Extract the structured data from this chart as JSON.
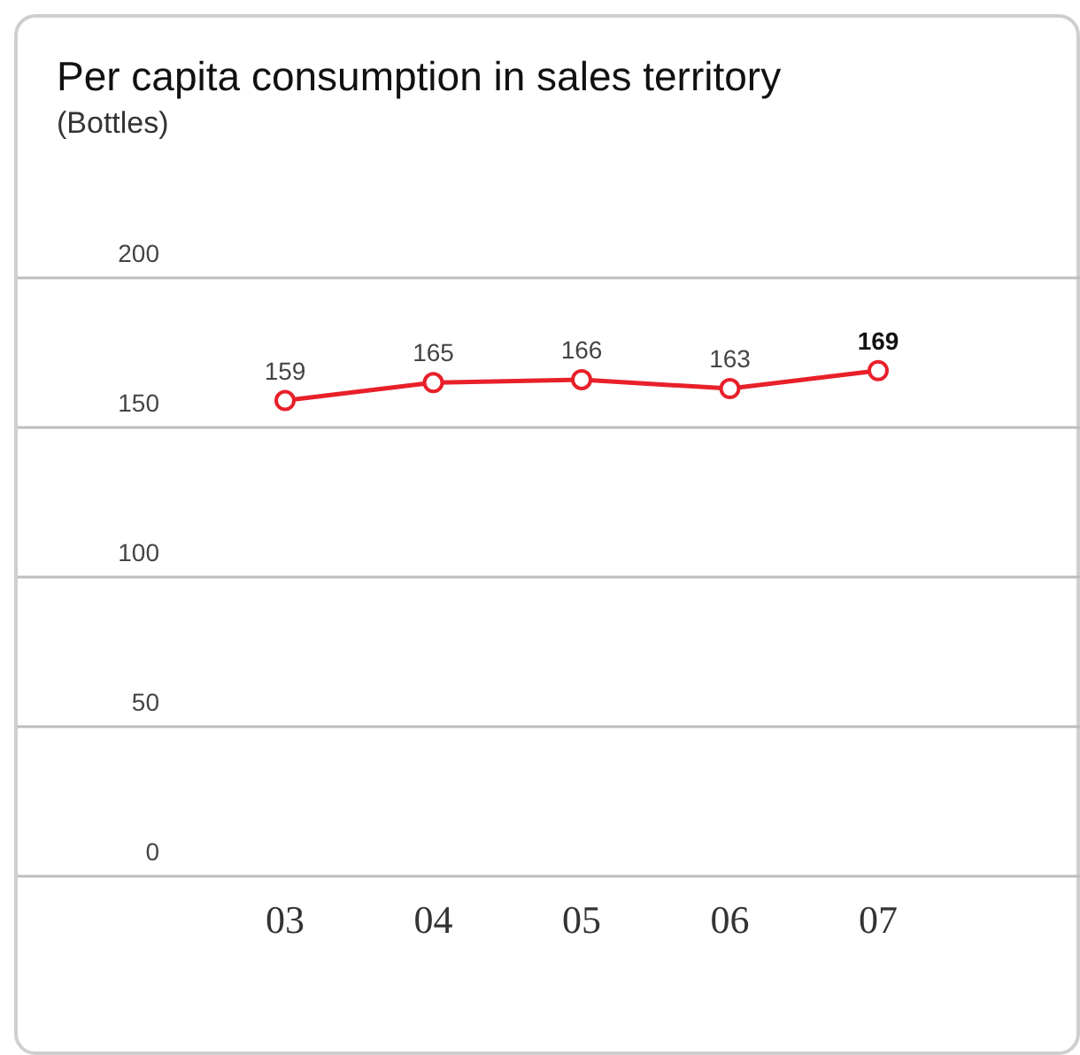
{
  "chart_data": {
    "type": "line",
    "title": "Per capita consumption in sales territory",
    "subtitle": "(Bottles)",
    "categories": [
      "03",
      "04",
      "05",
      "06",
      "07"
    ],
    "values": [
      159,
      165,
      166,
      163,
      169
    ],
    "color": "#e8202a",
    "ylim": [
      0,
      200
    ],
    "yticks": [
      0,
      50,
      100,
      150,
      200
    ],
    "grid": "y",
    "data_labels": true,
    "marker": "circle",
    "line_style": "solid"
  }
}
